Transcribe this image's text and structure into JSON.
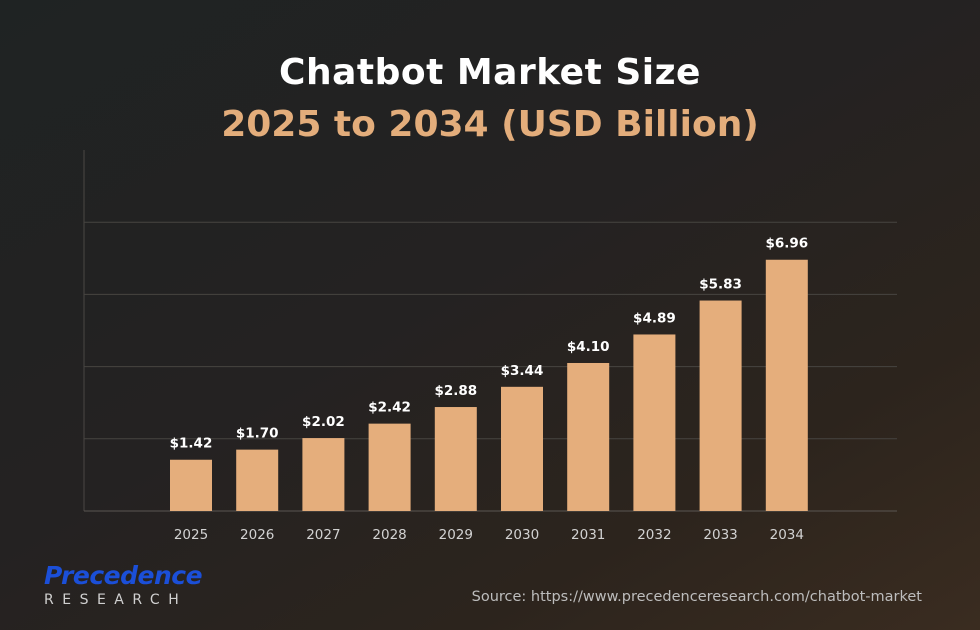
{
  "chart_data": {
    "type": "bar",
    "title": "Chatbot Market Size",
    "subtitle": "2025 to 2034 (USD Billion)",
    "categories": [
      "2025",
      "2026",
      "2027",
      "2028",
      "2029",
      "2030",
      "2031",
      "2032",
      "2033",
      "2034"
    ],
    "values": [
      1.42,
      1.7,
      2.02,
      2.42,
      2.88,
      3.44,
      4.1,
      4.89,
      5.83,
      6.96
    ],
    "value_labels": [
      "$1.42",
      "$1.70",
      "$2.02",
      "$2.42",
      "$2.88",
      "$3.44",
      "$4.10",
      "$4.89",
      "$5.83",
      "$6.96"
    ],
    "xlabel": "",
    "ylabel": "",
    "ylim": [
      0,
      10
    ],
    "grid": true,
    "bar_color": "#e5ae7c"
  },
  "branding": {
    "logo_main": "Precedence",
    "logo_sub": "RESEARCH"
  },
  "source": "Source: https://www.precedenceresearch.com/chatbot-market",
  "colors": {
    "title": "#ffffff",
    "subtitle": "#e3ad7b",
    "logo": "#1b4fd8"
  }
}
